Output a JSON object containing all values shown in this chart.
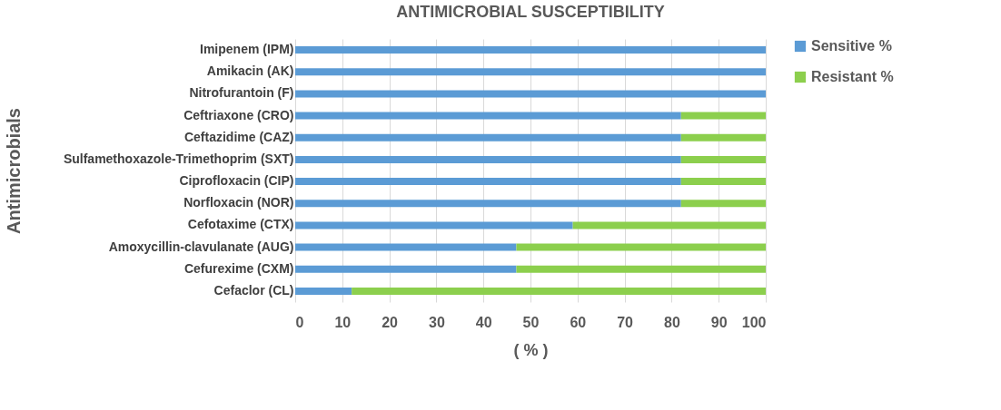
{
  "chart_data": {
    "type": "bar",
    "orientation": "horizontal",
    "stacked": true,
    "title": "ANTIMICROBIAL SUSCEPTIBILITY",
    "xlabel": "( % )",
    "ylabel": "Antimicrobials",
    "categories": [
      "Imipenem (IPM)",
      "Amikacin (AK)",
      "Nitrofurantoin (F)",
      "Ceftriaxone (CRO)",
      "Ceftazidime (CAZ)",
      "Sulfamethoxazole-Trimethoprim (SXT)",
      "Ciprofloxacin (CIP)",
      "Norfloxacin (NOR)",
      "Cefotaxime (CTX)",
      "Amoxycillin-clavulanate (AUG)",
      "Cefurexime (CXM)",
      "Cefaclor (CL)"
    ],
    "series": [
      {
        "name": "Sensitive %",
        "color": "#5b9bd5",
        "values": [
          100,
          100,
          100,
          82,
          82,
          82,
          82,
          82,
          59,
          47,
          47,
          12
        ]
      },
      {
        "name": "Resistant %",
        "color": "#8ccf4d",
        "values": [
          0,
          0,
          0,
          18,
          18,
          18,
          18,
          18,
          41,
          53,
          53,
          88
        ]
      }
    ],
    "xlim": [
      0,
      100
    ],
    "xticks": [
      0,
      10,
      20,
      30,
      40,
      50,
      60,
      70,
      80,
      90,
      100
    ],
    "grid": "x",
    "legend": "right"
  }
}
